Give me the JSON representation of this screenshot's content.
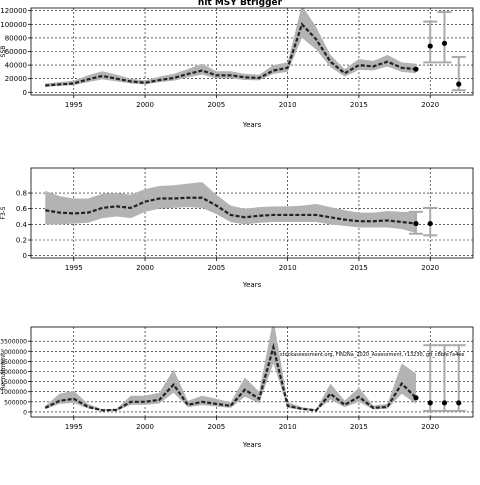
{
  "title": "hit MSY Btrigger",
  "chart_data": [
    {
      "type": "line",
      "ylabel": "SSB",
      "xlabel": "Years",
      "xlim": [
        1992,
        2023
      ],
      "ylim": [
        -4000,
        124000
      ],
      "yticks": [
        0,
        20000,
        40000,
        60000,
        80000,
        100000,
        120000
      ],
      "xticks": [
        1995,
        2000,
        2005,
        2010,
        2015,
        2020
      ],
      "grid": true,
      "x": [
        1993,
        1994,
        1995,
        1996,
        1997,
        1998,
        1999,
        2000,
        2001,
        2002,
        2003,
        2004,
        2005,
        2006,
        2007,
        2008,
        2009,
        2010,
        2011,
        2012,
        2013,
        2014,
        2015,
        2016,
        2017,
        2018,
        2019
      ],
      "series": [
        {
          "values": [
            10000,
            11500,
            13000,
            19000,
            24000,
            20000,
            16000,
            14000,
            18000,
            21000,
            27000,
            32000,
            25000,
            25000,
            22000,
            21000,
            32000,
            36000,
            100000,
            78000,
            45000,
            28000,
            40000,
            38000,
            45000,
            36000,
            34000
          ],
          "lower": [
            8000,
            9500,
            10500,
            15000,
            19000,
            16000,
            13000,
            11500,
            15000,
            17000,
            22000,
            26000,
            20500,
            20500,
            18000,
            17500,
            27000,
            30000,
            80000,
            63000,
            37000,
            23000,
            33000,
            32000,
            38000,
            30000,
            28000
          ],
          "upper": [
            13000,
            15000,
            17000,
            25000,
            31000,
            26000,
            20000,
            17500,
            23000,
            27000,
            34000,
            42000,
            31000,
            31000,
            27000,
            26000,
            40000,
            44000,
            128000,
            96000,
            55000,
            34000,
            49000,
            46000,
            55000,
            44000,
            42000
          ]
        }
      ],
      "points": [
        {
          "x": 2019,
          "y": 34000
        },
        {
          "x": 2020,
          "y": 68000
        },
        {
          "x": 2021,
          "y": 72000
        },
        {
          "x": 2022,
          "y": 12000
        }
      ],
      "error_bars": [
        {
          "x": 2020,
          "low": 44000,
          "high": 104000
        },
        {
          "x": 2021,
          "low": 44000,
          "high": 118000
        },
        {
          "x": 2022,
          "low": 3000,
          "high": 52000
        }
      ]
    },
    {
      "type": "line",
      "ylabel": "F3-5",
      "xlabel": "Years",
      "xlim": [
        1992,
        2023
      ],
      "ylim": [
        -0.03,
        1.12
      ],
      "yticks": [
        0.0,
        0.2,
        0.4,
        0.6,
        0.8
      ],
      "xticks": [
        1995,
        2000,
        2005,
        2010,
        2015,
        2020
      ],
      "grid": true,
      "x": [
        1993,
        1994,
        1995,
        1996,
        1997,
        1998,
        1999,
        2000,
        2001,
        2002,
        2003,
        2004,
        2005,
        2006,
        2007,
        2008,
        2009,
        2010,
        2011,
        2012,
        2013,
        2014,
        2015,
        2016,
        2017,
        2018,
        2019
      ],
      "series": [
        {
          "values": [
            0.58,
            0.55,
            0.54,
            0.55,
            0.61,
            0.63,
            0.61,
            0.69,
            0.73,
            0.73,
            0.74,
            0.74,
            0.64,
            0.52,
            0.49,
            0.51,
            0.52,
            0.52,
            0.52,
            0.52,
            0.49,
            0.46,
            0.44,
            0.44,
            0.45,
            0.43,
            0.41
          ],
          "lower": [
            0.4,
            0.4,
            0.41,
            0.42,
            0.48,
            0.5,
            0.48,
            0.56,
            0.6,
            0.61,
            0.62,
            0.61,
            0.53,
            0.43,
            0.4,
            0.42,
            0.43,
            0.43,
            0.43,
            0.43,
            0.4,
            0.38,
            0.36,
            0.36,
            0.36,
            0.34,
            0.29
          ],
          "upper": [
            0.83,
            0.76,
            0.73,
            0.73,
            0.79,
            0.8,
            0.78,
            0.85,
            0.89,
            0.9,
            0.92,
            0.94,
            0.78,
            0.64,
            0.6,
            0.62,
            0.63,
            0.63,
            0.64,
            0.66,
            0.62,
            0.58,
            0.55,
            0.55,
            0.57,
            0.56,
            0.56
          ]
        }
      ],
      "points": [
        {
          "x": 2019,
          "y": 0.41
        },
        {
          "x": 2020,
          "y": 0.41
        }
      ],
      "error_bars": [
        {
          "x": 2019,
          "low": 0.28,
          "high": 0.56
        },
        {
          "x": 2020,
          "low": 0.26,
          "high": 0.61
        }
      ]
    },
    {
      "type": "line",
      "ylabel": "Recruitment",
      "xlabel": "Years",
      "annotation": "stockassessment.org, FIN2Na_2020_Assessment, r13230, git_c8bfe7a4ee",
      "xlim": [
        1992,
        2023
      ],
      "ylim": [
        -250000,
        4200000
      ],
      "yticks": [
        0,
        500000,
        1000000,
        1500000,
        2000000,
        2500000,
        3000000,
        3500000
      ],
      "ytick_labels": [
        "0",
        "500000",
        "1000000",
        "1500000",
        "2000000",
        "2500000",
        "3000000",
        "3500000"
      ],
      "xticks": [
        1995,
        2000,
        2005,
        2010,
        2015,
        2020
      ],
      "grid": true,
      "x": [
        1993,
        1994,
        1995,
        1996,
        1997,
        1998,
        1999,
        2000,
        2001,
        2002,
        2003,
        2004,
        2005,
        2006,
        2007,
        2008,
        2009,
        2010,
        2011,
        2012,
        2013,
        2014,
        2015,
        2016,
        2017,
        2018,
        2019
      ],
      "series": [
        {
          "values": [
            200000,
            550000,
            650000,
            250000,
            80000,
            100000,
            500000,
            500000,
            600000,
            1350000,
            350000,
            500000,
            400000,
            300000,
            1100000,
            650000,
            3200000,
            300000,
            150000,
            80000,
            900000,
            350000,
            750000,
            200000,
            250000,
            1400000,
            700000
          ],
          "lower": [
            140000,
            400000,
            450000,
            170000,
            50000,
            60000,
            350000,
            350000,
            420000,
            950000,
            240000,
            340000,
            270000,
            200000,
            750000,
            440000,
            2400000,
            200000,
            100000,
            50000,
            600000,
            230000,
            500000,
            130000,
            160000,
            900000,
            400000
          ],
          "upper": [
            300000,
            900000,
            1050000,
            400000,
            130000,
            160000,
            800000,
            800000,
            950000,
            2100000,
            550000,
            800000,
            650000,
            480000,
            1700000,
            1000000,
            4600000,
            480000,
            240000,
            130000,
            1400000,
            560000,
            1200000,
            320000,
            400000,
            2400000,
            1900000
          ]
        }
      ],
      "points": [
        {
          "x": 2019,
          "y": 700000
        },
        {
          "x": 2020,
          "y": 450000
        },
        {
          "x": 2021,
          "y": 450000
        },
        {
          "x": 2022,
          "y": 450000
        }
      ],
      "error_bars": [
        {
          "x": 2020,
          "low": 50000,
          "high": 3300000
        },
        {
          "x": 2021,
          "low": 50000,
          "high": 3300000
        },
        {
          "x": 2022,
          "low": 50000,
          "high": 3300000
        }
      ]
    }
  ]
}
